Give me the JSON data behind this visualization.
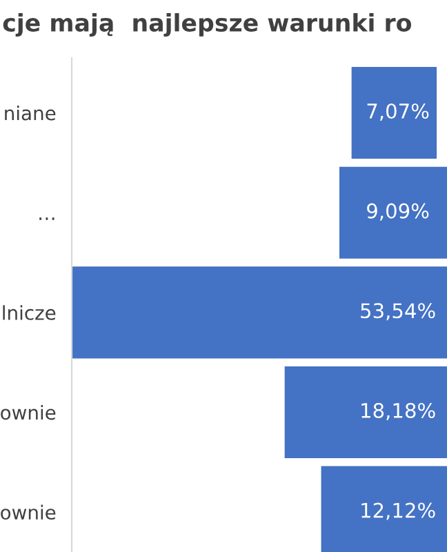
{
  "chart_data": {
    "type": "other",
    "title": "cje mają  najlepsze warunki ro",
    "categories": [
      "niane",
      "…",
      "lnicze",
      "ownie",
      "ownie"
    ],
    "values": [
      7.07,
      9.09,
      53.54,
      18.18,
      12.12
    ],
    "value_labels": [
      "7,07%",
      "9,09%",
      "53,54%",
      "18,18%",
      "12,12%"
    ],
    "color": "#4472c4"
  }
}
